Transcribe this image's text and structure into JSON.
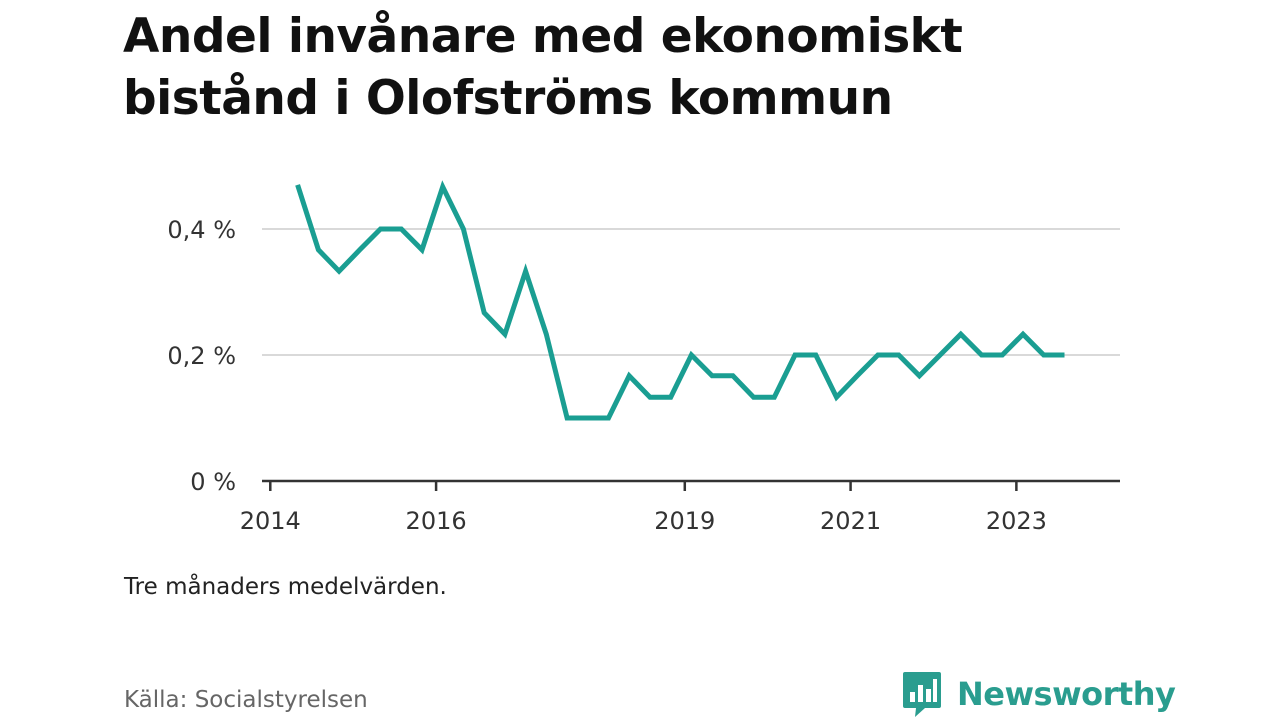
{
  "title": "Andel invånare med ekonomiskt bistånd i Olofströms kommun",
  "note": "Tre månaders medelvärden.",
  "source": "Källa: Socialstyrelsen",
  "brand": {
    "name": "Newsworthy",
    "color": "#2a9d8f",
    "icon": "newsworthy-logo-icon"
  },
  "chart_data": {
    "type": "line",
    "title": "Andel invånare med ekonomiskt bistånd i Olofströms kommun",
    "xlabel": "",
    "ylabel": "",
    "xlim": [
      2013.9,
      2024.25
    ],
    "ylim": [
      0,
      0.4
    ],
    "yticks": [
      {
        "value": 0,
        "label": "0 %"
      },
      {
        "value": 0.2,
        "label": "0,2 %"
      },
      {
        "value": 0.4,
        "label": "0,4 %"
      }
    ],
    "xticks": [
      {
        "value": 2014,
        "label": "2014"
      },
      {
        "value": 2016,
        "label": "2016"
      },
      {
        "value": 2019,
        "label": "2019"
      },
      {
        "value": 2021,
        "label": "2021"
      },
      {
        "value": 2023,
        "label": "2023"
      }
    ],
    "grid": true,
    "line_color": "#1a9e92",
    "series": [
      {
        "name": "",
        "x": [
          2014.33,
          2014.58,
          2014.83,
          2015.08,
          2015.33,
          2015.58,
          2015.83,
          2016.08,
          2016.33,
          2016.58,
          2016.83,
          2017.08,
          2017.33,
          2017.58,
          2017.83,
          2018.08,
          2018.33,
          2018.58,
          2018.83,
          2019.08,
          2019.33,
          2019.58,
          2019.83,
          2020.08,
          2020.33,
          2020.58,
          2020.83,
          2021.08,
          2021.33,
          2021.58,
          2021.83,
          2022.08,
          2022.33,
          2022.58,
          2022.83,
          2023.08,
          2023.33,
          2023.58
        ],
        "y": [
          0.47,
          0.367,
          0.333,
          0.367,
          0.4,
          0.4,
          0.367,
          0.467,
          0.4,
          0.267,
          0.233,
          0.333,
          0.233,
          0.1,
          0.1,
          0.1,
          0.167,
          0.133,
          0.133,
          0.2,
          0.167,
          0.167,
          0.133,
          0.133,
          0.2,
          0.2,
          0.133,
          0.167,
          0.2,
          0.2,
          0.167,
          0.2,
          0.233,
          0.2,
          0.2,
          0.233,
          0.2,
          0.2
        ]
      }
    ]
  }
}
